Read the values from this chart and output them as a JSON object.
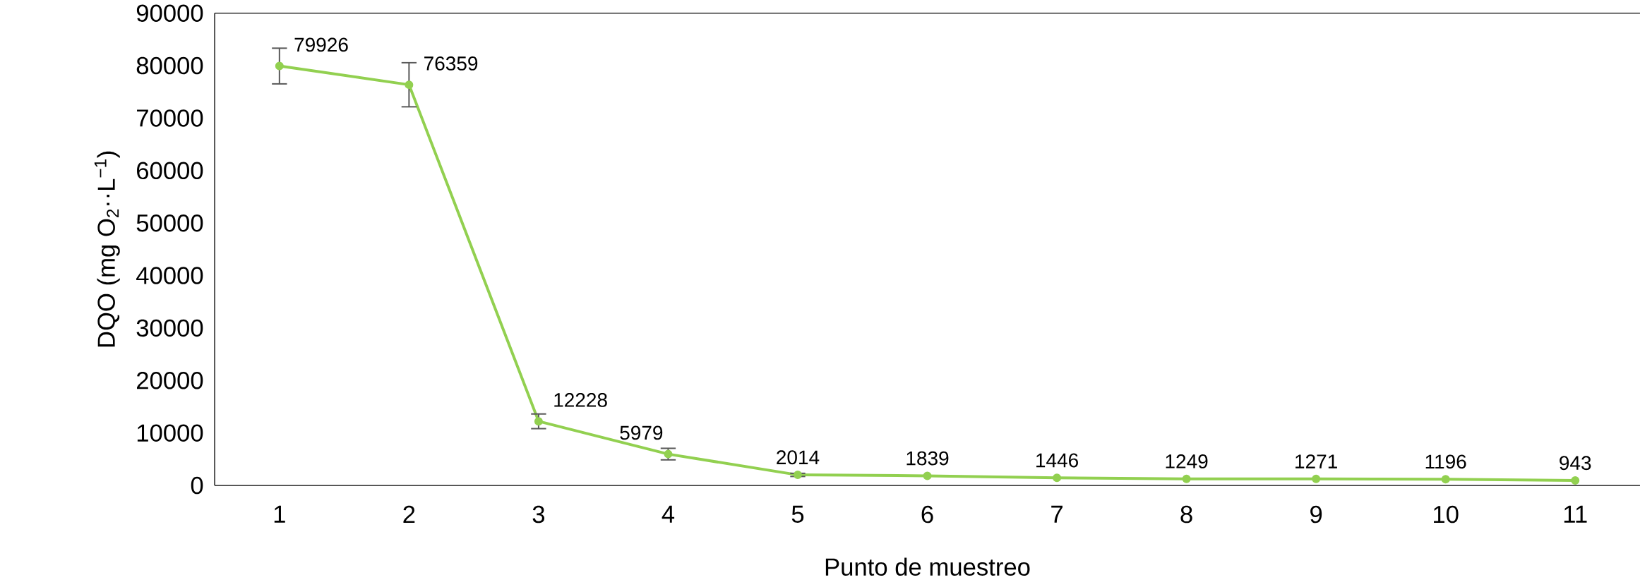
{
  "chart_data": {
    "type": "line",
    "xlabel": "Punto de muestreo",
    "ylabel": "DQO  (mg O$_{2}$··L$^{−1}$)",
    "categories": [
      "1",
      "2",
      "3",
      "4",
      "5",
      "6",
      "7",
      "8",
      "9",
      "10",
      "11"
    ],
    "values": [
      79926,
      76359,
      12228,
      5979,
      2014,
      1839,
      1446,
      1249,
      1271,
      1196,
      943
    ],
    "errors": [
      3400,
      4200,
      1400,
      1100,
      300,
      null,
      null,
      null,
      null,
      null,
      null
    ],
    "color": "#92d050",
    "marker": "circle",
    "line_style": "solid",
    "data_labels": true,
    "ylim": [
      0,
      90000
    ],
    "yticks": [
      0,
      10000,
      20000,
      30000,
      40000,
      50000,
      60000,
      70000,
      80000,
      90000
    ],
    "grid": false
  }
}
